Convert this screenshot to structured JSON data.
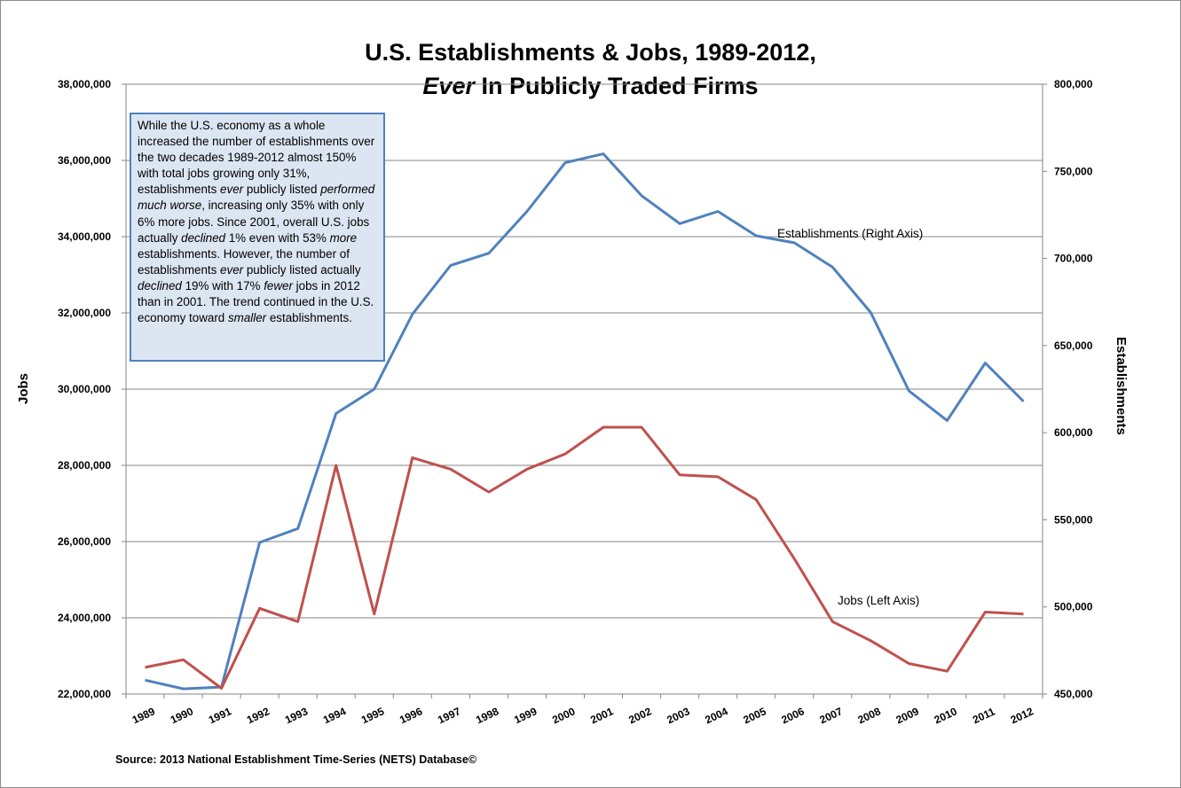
{
  "title_line1": "U.S. Establishments & Jobs, 1989-2012,",
  "title_line2_italic": "Ever",
  "title_line2_rest": " In Publicly Traded Firms",
  "annotation": [
    {
      "t": "While the U.S. economy as a whole increased the number of establishments over the two decades 1989-2012 almost 150% with total jobs growing only 31%, establishments "
    },
    {
      "t": "ever",
      "i": true
    },
    {
      "t": " publicly listed "
    },
    {
      "t": "performed much worse",
      "i": true
    },
    {
      "t": ", increasing only 35% with only 6% more jobs.  Since 2001, overall U.S. jobs actually "
    },
    {
      "t": "declined",
      "i": true
    },
    {
      "t": "  1% even with 53% "
    },
    {
      "t": "more",
      "i": true
    },
    {
      "t": " establishments.  However, the number of establishments "
    },
    {
      "t": "ever",
      "i": true
    },
    {
      "t": " publicly listed actually "
    },
    {
      "t": "declined",
      "i": true
    },
    {
      "t": " 19% with 17% "
    },
    {
      "t": "fewer",
      "i": true
    },
    {
      "t": " jobs in 2012 than in 2001.  The trend continued in the U.S. economy toward "
    },
    {
      "t": "smaller",
      "i": true
    },
    {
      "t": " establishments."
    }
  ],
  "source": "Source: 2013 National Establishment Time-Series (NETS) Database©",
  "colors": {
    "establishments": "#4f81bd",
    "jobs": "#c0504d",
    "grid": "#868686"
  },
  "chart_data": {
    "type": "line",
    "x": [
      1989,
      1990,
      1991,
      1992,
      1993,
      1994,
      1995,
      1996,
      1997,
      1998,
      1999,
      2000,
      2001,
      2002,
      2003,
      2004,
      2005,
      2006,
      2007,
      2008,
      2009,
      2010,
      2011,
      2012
    ],
    "x_tick_labels": [
      "1989",
      "1990",
      "1991",
      "1992",
      "1993",
      "1994",
      "1995",
      "1996",
      "1997",
      "1998",
      "1999",
      "2000",
      "2001",
      "2002",
      "2003",
      "2004",
      "2005",
      "2006",
      "2007",
      "2008",
      "2009",
      "2010",
      "2011",
      "2012"
    ],
    "y_left": {
      "label": "Jobs",
      "range": [
        22000000,
        38000000
      ],
      "tick_labels": [
        "22,000,000",
        "24,000,000",
        "26,000,000",
        "28,000,000",
        "30,000,000",
        "32,000,000",
        "34,000,000",
        "36,000,000",
        "38,000,000"
      ],
      "tick_values": [
        22000000,
        24000000,
        26000000,
        28000000,
        30000000,
        32000000,
        34000000,
        36000000,
        38000000
      ]
    },
    "y_right": {
      "label": "Establishments",
      "range": [
        450000,
        800000
      ],
      "tick_labels": [
        "450,000",
        "500,000",
        "550,000",
        "600,000",
        "650,000",
        "700,000",
        "750,000",
        "800,000"
      ],
      "tick_values": [
        450000,
        500000,
        550000,
        600000,
        650000,
        700000,
        750000,
        800000
      ]
    },
    "grid": true,
    "series": [
      {
        "name": "Establishments (Right Axis)",
        "axis": "right",
        "values": [
          458000,
          453000,
          454000,
          537000,
          545000,
          611000,
          625000,
          668000,
          696000,
          703000,
          727000,
          755000,
          760000,
          736000,
          720000,
          727000,
          713000,
          709000,
          695000,
          669000,
          624000,
          607000,
          640000,
          618000
        ]
      },
      {
        "name": "Jobs (Left Axis)",
        "axis": "left",
        "values": [
          22700000,
          22900000,
          22150000,
          24250000,
          23900000,
          28000000,
          24100000,
          28200000,
          27900000,
          27300000,
          27900000,
          28300000,
          29000000,
          29000000,
          27750000,
          27700000,
          27100000,
          25550000,
          23900000,
          23400000,
          22800000,
          22600000,
          24150000,
          24100000
        ]
      }
    ]
  }
}
